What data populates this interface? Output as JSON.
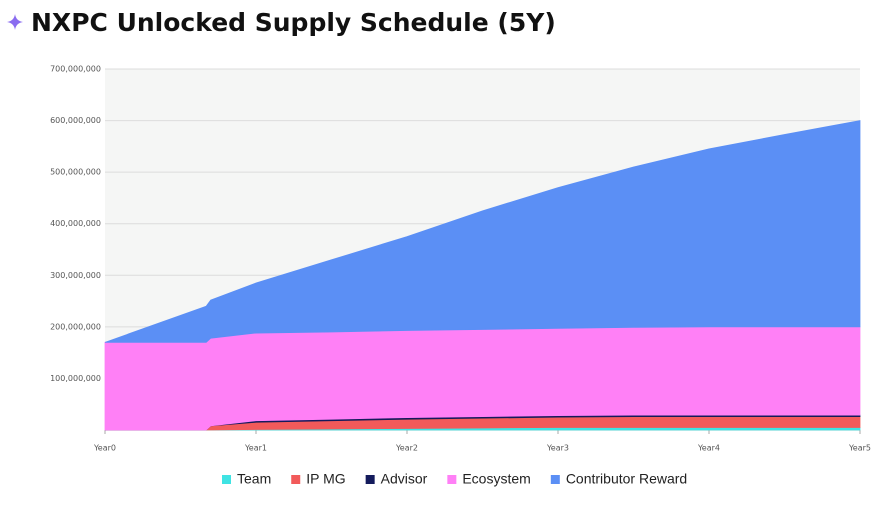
{
  "chart_data": {
    "type": "stacked-area",
    "title": "NXPC Unlocked Supply Schedule (5Y)",
    "x": [
      0,
      0.67,
      0.7,
      1,
      1.5,
      2,
      2.5,
      3,
      3.5,
      4,
      4.5,
      5
    ],
    "xlim": [
      0,
      5
    ],
    "xticks": [
      {
        "value": 0,
        "label": "Year0"
      },
      {
        "value": 1,
        "label": "Year1"
      },
      {
        "value": 2,
        "label": "Year2"
      },
      {
        "value": 3,
        "label": "Year3"
      },
      {
        "value": 4,
        "label": "Year4"
      },
      {
        "value": 5,
        "label": "Year5"
      }
    ],
    "ylim": [
      0,
      700000000
    ],
    "yticks": [
      {
        "value": 100000000,
        "label": "100,000,000"
      },
      {
        "value": 200000000,
        "label": "200,000,000"
      },
      {
        "value": 300000000,
        "label": "300,000,000"
      },
      {
        "value": 400000000,
        "label": "400,000,000"
      },
      {
        "value": 500000000,
        "label": "500,000,000"
      },
      {
        "value": 600000000,
        "label": "600,000,000"
      },
      {
        "value": 700000000,
        "label": "700,000,000"
      }
    ],
    "grid": true,
    "series": [
      {
        "name": "Team",
        "color": "#3fe3e3",
        "values": [
          0,
          0,
          0,
          1000000,
          2000000,
          3000000,
          4000000,
          5000000,
          5000000,
          5000000,
          5000000,
          5000000
        ]
      },
      {
        "name": "IP MG",
        "color": "#f25a5a",
        "values": [
          0,
          0,
          8000000,
          14000000,
          16000000,
          18000000,
          19000000,
          20000000,
          21000000,
          21000000,
          21000000,
          21000000
        ]
      },
      {
        "name": "Advisor",
        "color": "#141b5c",
        "values": [
          0,
          0,
          0,
          3000000,
          3000000,
          3000000,
          3000000,
          3000000,
          3000000,
          3000000,
          3000000,
          3000000
        ]
      },
      {
        "name": "Ecosystem",
        "color": "#ff80f6",
        "values": [
          170000000,
          170000000,
          170000000,
          170000000,
          169000000,
          169000000,
          169000000,
          169000000,
          170000000,
          171000000,
          171000000,
          171000000
        ]
      },
      {
        "name": "Contributor Reward",
        "color": "#5b8ff5",
        "values": [
          0,
          70000000,
          74000000,
          97000000,
          140000000,
          182000000,
          230000000,
          273000000,
          311000000,
          345000000,
          373000000,
          400000000
        ]
      }
    ]
  }
}
